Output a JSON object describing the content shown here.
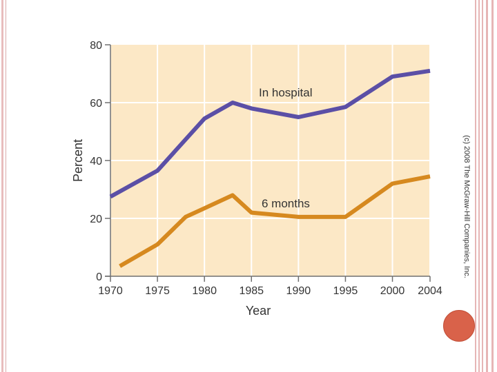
{
  "copyright": "(c) 2008 The McGraw-Hill Companies, Inc.",
  "colors": {
    "plot_bg": "#fce8c6",
    "grid": "#ffffff",
    "hospital": "#5b4fa6",
    "six_months": "#d6891f",
    "accent_dot": "#d9624a"
  },
  "chart_data": {
    "type": "line",
    "title": "",
    "xlabel": "Year",
    "ylabel": "Percent",
    "xlim": [
      1970,
      2004
    ],
    "ylim": [
      0,
      80
    ],
    "x_ticks": [
      1970,
      1975,
      1980,
      1985,
      1990,
      1995,
      2000,
      2004
    ],
    "x_tick_labels": [
      "1970",
      "1975",
      "1980",
      "1985",
      "1990",
      "1995",
      "2000",
      "2004"
    ],
    "y_ticks": [
      0,
      20,
      40,
      60,
      80
    ],
    "y_tick_labels": [
      "0",
      "20",
      "40",
      "60",
      "80"
    ],
    "grid": true,
    "series": [
      {
        "name": "In hospital",
        "label": "In hospital",
        "x": [
          1970,
          1975,
          1980,
          1983,
          1985,
          1990,
          1995,
          2000,
          2004
        ],
        "y": [
          27.5,
          36.5,
          54.5,
          60,
          58,
          55,
          58.5,
          69,
          71
        ]
      },
      {
        "name": "6 months",
        "label": "6 months",
        "x": [
          1971,
          1975,
          1978,
          1980,
          1983,
          1985,
          1990,
          1995,
          2000,
          2004
        ],
        "y": [
          3.5,
          11,
          20.5,
          23.5,
          28,
          22,
          20.5,
          20.5,
          32,
          34.5
        ]
      }
    ]
  }
}
